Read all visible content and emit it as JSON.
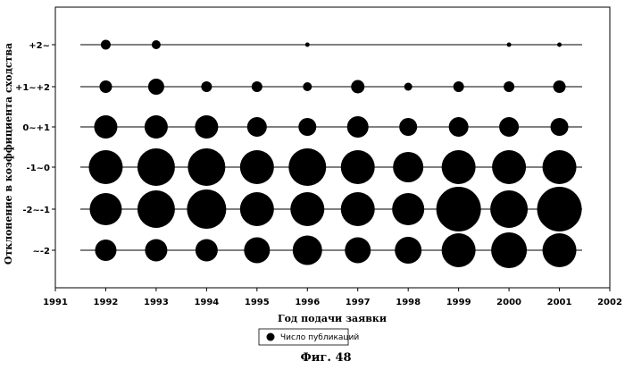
{
  "chart_data": {
    "type": "scatter",
    "subtype": "bubble",
    "xlabel": "Год подачи заявки",
    "ylabel": "Отклонение в коэффициента сходства",
    "x_ticks": [
      "1991",
      "1992",
      "1993",
      "1994",
      "1995",
      "1996",
      "1997",
      "1998",
      "1999",
      "2000",
      "2001",
      "2002"
    ],
    "xlim": [
      1991,
      2002
    ],
    "y_categories": [
      "+2~",
      "+1~+2",
      "0~+1",
      "-1~0",
      "-2~-1",
      "~-2"
    ],
    "legend": {
      "label": "Число публикаций",
      "placement": "bottom-center"
    },
    "caption": "Фиг. 48",
    "grid": "horizontal lines per category",
    "bubble_size_unit": "relative diameter",
    "rows": [
      {
        "category": "+2~",
        "points": [
          [
            1992,
            11
          ],
          [
            1993,
            10
          ],
          [
            1996,
            5
          ],
          [
            2000,
            5
          ],
          [
            2001,
            5
          ]
        ]
      },
      {
        "category": "+1~+2",
        "points": [
          [
            1992,
            14
          ],
          [
            1993,
            18
          ],
          [
            1994,
            12
          ],
          [
            1995,
            12
          ],
          [
            1996,
            10
          ],
          [
            1997,
            15
          ],
          [
            1998,
            9
          ],
          [
            1999,
            12
          ],
          [
            2000,
            12
          ],
          [
            2001,
            14
          ]
        ]
      },
      {
        "category": "0~+1",
        "points": [
          [
            1992,
            26
          ],
          [
            1993,
            26
          ],
          [
            1994,
            26
          ],
          [
            1995,
            22
          ],
          [
            1996,
            20
          ],
          [
            1997,
            24
          ],
          [
            1998,
            20
          ],
          [
            1999,
            22
          ],
          [
            2000,
            22
          ],
          [
            2001,
            20
          ]
        ]
      },
      {
        "category": "-1~0",
        "points": [
          [
            1992,
            38
          ],
          [
            1993,
            42
          ],
          [
            1994,
            42
          ],
          [
            1995,
            38
          ],
          [
            1996,
            42
          ],
          [
            1997,
            38
          ],
          [
            1998,
            34
          ],
          [
            1999,
            38
          ],
          [
            2000,
            38
          ],
          [
            2001,
            38
          ]
        ]
      },
      {
        "category": "-2~-1",
        "points": [
          [
            1992,
            36
          ],
          [
            1993,
            42
          ],
          [
            1994,
            44
          ],
          [
            1995,
            38
          ],
          [
            1996,
            38
          ],
          [
            1997,
            38
          ],
          [
            1998,
            36
          ],
          [
            1999,
            50
          ],
          [
            2000,
            42
          ],
          [
            2001,
            50
          ]
        ]
      },
      {
        "category": "~-2",
        "points": [
          [
            1992,
            24
          ],
          [
            1993,
            25
          ],
          [
            1994,
            25
          ],
          [
            1995,
            29
          ],
          [
            1996,
            33
          ],
          [
            1997,
            29
          ],
          [
            1998,
            30
          ],
          [
            1999,
            38
          ],
          [
            2000,
            40
          ],
          [
            2001,
            38
          ]
        ]
      }
    ]
  }
}
